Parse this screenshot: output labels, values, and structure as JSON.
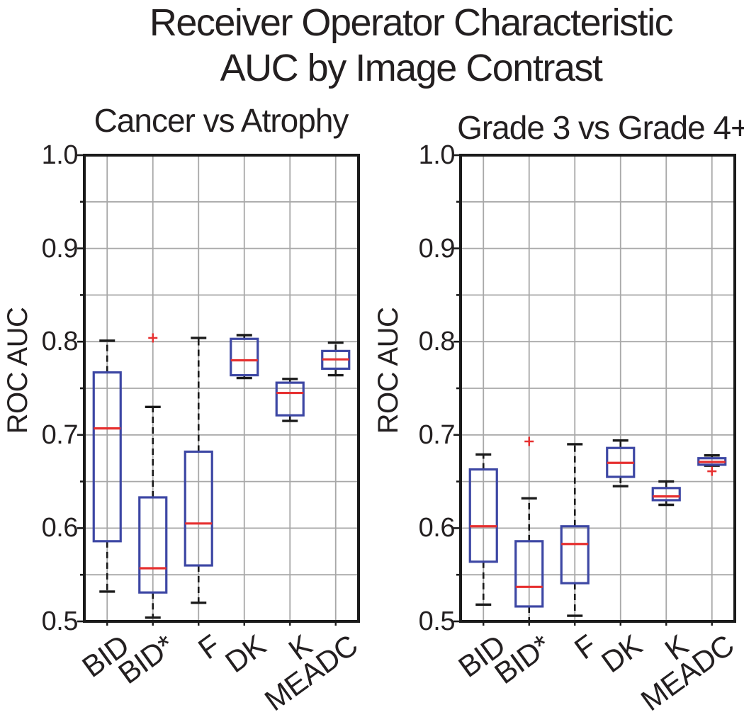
{
  "figure": {
    "title_line1": "Receiver Operator Characteristic",
    "title_line2": "AUC by Image Contrast"
  },
  "colors": {
    "box": "#3d47a4",
    "median": "#e63030",
    "outlier": "#e63030",
    "whisker": "#1a1a1a",
    "frame": "#1a1a1a",
    "grid": "#a8a8a8",
    "text": "#231f20",
    "background": "#ffffff"
  },
  "chart_data": [
    {
      "type": "boxplot",
      "title": "Cancer vs Atrophy",
      "ylabel": "ROC AUC",
      "ylim": [
        0.5,
        1.0
      ],
      "ytick_values": [
        1.0,
        0.9,
        0.8,
        0.7,
        0.6,
        0.5
      ],
      "ytick_labels": [
        "1.0",
        "0.9",
        "0.8",
        "0.7",
        "0.6",
        "0.5"
      ],
      "minor_tick_step": 0.05,
      "grid": true,
      "categories": [
        "BID",
        "BID*",
        "F",
        "DK",
        "K",
        "MEADC"
      ],
      "boxes": [
        {
          "category": "BID",
          "whisker_low": 0.532,
          "q1": 0.586,
          "median": 0.707,
          "q3": 0.767,
          "whisker_high": 0.801,
          "outliers": []
        },
        {
          "category": "BID*",
          "whisker_low": 0.504,
          "q1": 0.531,
          "median": 0.557,
          "q3": 0.633,
          "whisker_high": 0.73,
          "outliers": [
            0.804
          ]
        },
        {
          "category": "F",
          "whisker_low": 0.52,
          "q1": 0.56,
          "median": 0.605,
          "q3": 0.682,
          "whisker_high": 0.804,
          "outliers": []
        },
        {
          "category": "DK",
          "whisker_low": 0.761,
          "q1": 0.764,
          "median": 0.78,
          "q3": 0.803,
          "whisker_high": 0.807,
          "outliers": []
        },
        {
          "category": "K",
          "whisker_low": 0.715,
          "q1": 0.721,
          "median": 0.745,
          "q3": 0.756,
          "whisker_high": 0.76,
          "outliers": []
        },
        {
          "category": "MEADC",
          "whisker_low": 0.764,
          "q1": 0.771,
          "median": 0.781,
          "q3": 0.79,
          "whisker_high": 0.799,
          "outliers": []
        }
      ]
    },
    {
      "type": "boxplot",
      "title": "Grade 3 vs Grade 4+",
      "ylabel": "ROC AUC",
      "ylim": [
        0.5,
        1.0
      ],
      "ytick_values": [
        1.0,
        0.9,
        0.8,
        0.7,
        0.6,
        0.5
      ],
      "ytick_labels": [
        "1.0",
        "0.9",
        "0.8",
        "0.7",
        "0.6",
        "0.5"
      ],
      "minor_tick_step": 0.05,
      "grid": true,
      "categories": [
        "BID",
        "BID*",
        "F",
        "DK",
        "K",
        "MEADC"
      ],
      "boxes": [
        {
          "category": "BID",
          "whisker_low": 0.518,
          "q1": 0.564,
          "median": 0.602,
          "q3": 0.663,
          "whisker_high": 0.679,
          "outliers": []
        },
        {
          "category": "BID*",
          "whisker_low": 0.5,
          "q1": 0.516,
          "median": 0.537,
          "q3": 0.586,
          "whisker_high": 0.632,
          "outliers": [
            0.693
          ]
        },
        {
          "category": "F",
          "whisker_low": 0.506,
          "q1": 0.541,
          "median": 0.583,
          "q3": 0.602,
          "whisker_high": 0.69,
          "outliers": []
        },
        {
          "category": "DK",
          "whisker_low": 0.645,
          "q1": 0.655,
          "median": 0.67,
          "q3": 0.686,
          "whisker_high": 0.694,
          "outliers": []
        },
        {
          "category": "K",
          "whisker_low": 0.625,
          "q1": 0.63,
          "median": 0.634,
          "q3": 0.643,
          "whisker_high": 0.65,
          "outliers": []
        },
        {
          "category": "MEADC",
          "whisker_low": 0.667,
          "q1": 0.668,
          "median": 0.671,
          "q3": 0.675,
          "whisker_high": 0.678,
          "outliers": [
            0.661
          ]
        }
      ]
    }
  ]
}
